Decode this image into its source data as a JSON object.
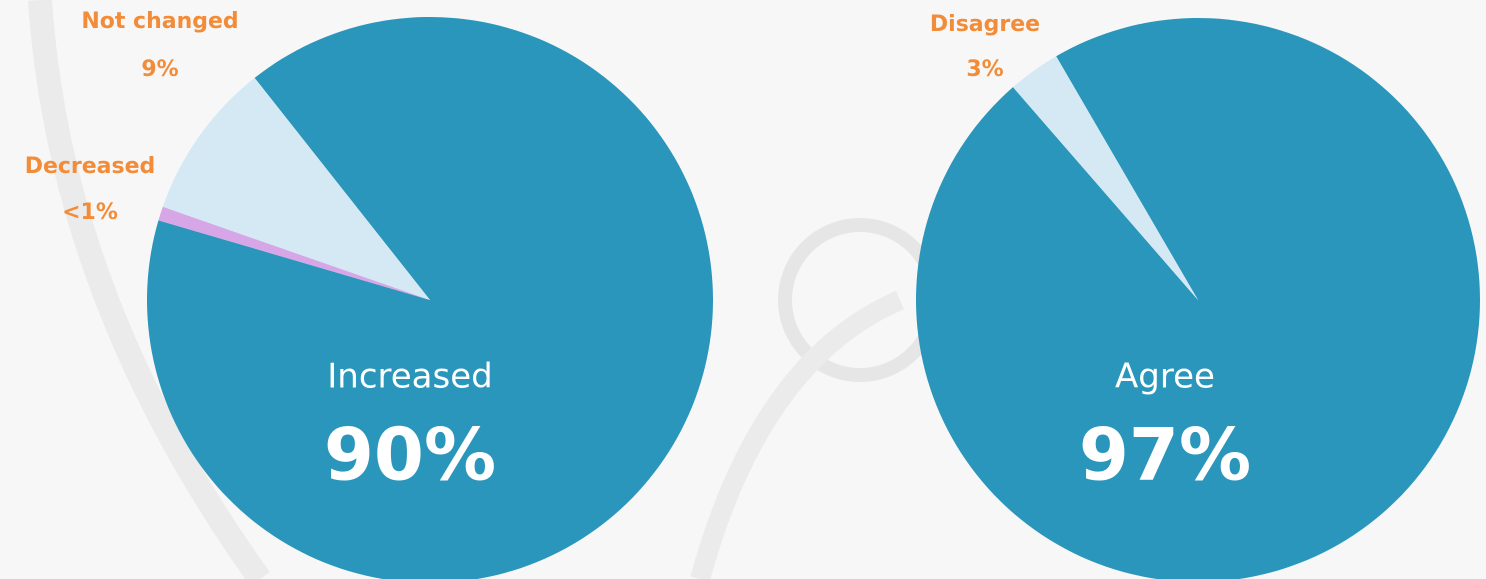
{
  "chart_data": [
    {
      "type": "pie",
      "categories": [
        "Increased",
        "Decreased",
        "Not changed"
      ],
      "values": [
        90,
        0.8,
        9
      ],
      "value_labels": [
        "90%",
        "<1%",
        "9%"
      ],
      "colors": [
        "#2a96bb",
        "#d6a6e6",
        "#d4e9f4"
      ]
    },
    {
      "type": "pie",
      "categories": [
        "Agree",
        "Disagree"
      ],
      "values": [
        97,
        3
      ],
      "value_labels": [
        "97%",
        "3%"
      ],
      "colors": [
        "#2a96bb",
        "#d4e9f4"
      ]
    }
  ]
}
